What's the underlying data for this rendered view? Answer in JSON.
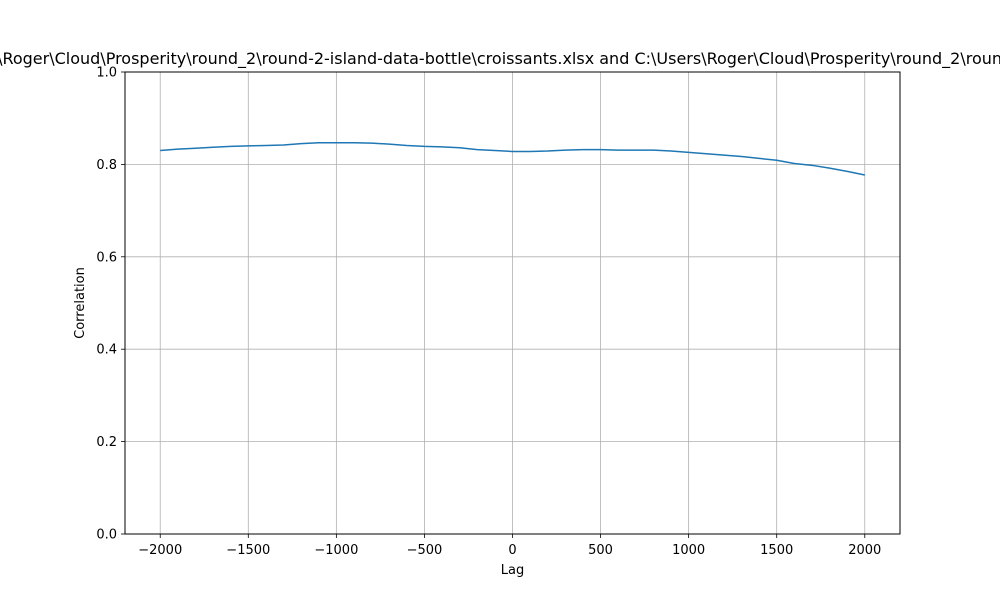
{
  "chart_data": {
    "type": "line",
    "title": "Cross-correlation between C:\\Users\\Roger\\Cloud\\Prosperity\\round_2\\round-2-island-data-bottle\\croissants.xlsx and C:\\Users\\Roger\\Cloud\\Prosperity\\round_2\\round-2-island-data-bottle\\diving_gear.xlsx",
    "xlabel": "Lag",
    "ylabel": "Correlation",
    "xlim": [
      -2200,
      2200
    ],
    "ylim": [
      0,
      1.0
    ],
    "x_ticks": [
      -2000,
      -1500,
      -1000,
      -500,
      0,
      500,
      1000,
      1500,
      2000
    ],
    "x_tick_labels": [
      "−2000",
      "−1500",
      "−1000",
      "−500",
      "0",
      "500",
      "1000",
      "1500",
      "2000"
    ],
    "y_ticks": [
      0,
      0.2,
      0.4,
      0.6,
      0.8,
      1.0
    ],
    "y_tick_labels": [
      "0.0",
      "0.2",
      "0.4",
      "0.6",
      "0.8",
      "1.0"
    ],
    "grid": true,
    "series": [
      {
        "color": "#1f77b4",
        "x": [
          -2000,
          -1900,
          -1800,
          -1700,
          -1600,
          -1500,
          -1400,
          -1300,
          -1200,
          -1100,
          -1000,
          -900,
          -800,
          -700,
          -600,
          -500,
          -400,
          -300,
          -200,
          -100,
          0,
          100,
          200,
          300,
          400,
          500,
          600,
          700,
          800,
          900,
          1000,
          1100,
          1200,
          1300,
          1400,
          1500,
          1600,
          1700,
          1800,
          1900,
          2000
        ],
        "y": [
          0.83,
          0.833,
          0.835,
          0.837,
          0.839,
          0.84,
          0.841,
          0.842,
          0.845,
          0.847,
          0.847,
          0.847,
          0.846,
          0.844,
          0.841,
          0.839,
          0.838,
          0.836,
          0.832,
          0.83,
          0.828,
          0.828,
          0.829,
          0.831,
          0.832,
          0.832,
          0.831,
          0.831,
          0.831,
          0.829,
          0.826,
          0.823,
          0.82,
          0.817,
          0.813,
          0.809,
          0.802,
          0.798,
          0.792,
          0.785,
          0.777
        ]
      }
    ]
  }
}
